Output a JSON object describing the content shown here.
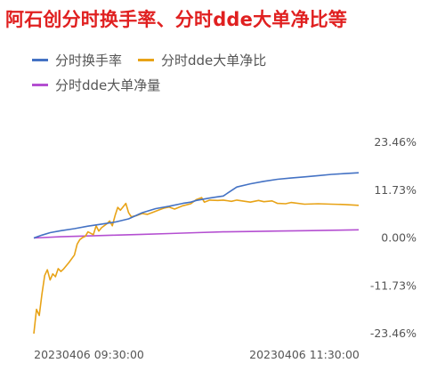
{
  "chart_data": {
    "type": "line",
    "title": "阿石创分时换手率、分时dde大单净比等",
    "y_ticks": [
      "23.46%",
      "11.73%",
      "0.00%",
      "-11.73%",
      "-23.46%"
    ],
    "y_tick_values": [
      23.46,
      11.73,
      0,
      -11.73,
      -23.46
    ],
    "ylim": [
      -23.46,
      23.46
    ],
    "x_ticks": [
      "20230406 09:30:00",
      "20230406 11:30:00"
    ],
    "x_range_minutes": [
      0,
      120
    ],
    "legend_position": "top-left",
    "grid": false,
    "series": [
      {
        "name": "分时换手率",
        "color": "#4472c4",
        "x": [
          0,
          3,
          6,
          10,
          15,
          20,
          25,
          30,
          35,
          40,
          45,
          50,
          55,
          58,
          60,
          65,
          68,
          70,
          72,
          75,
          80,
          85,
          90,
          95,
          100,
          105,
          110,
          115,
          120
        ],
        "y": [
          0,
          0.7,
          1.3,
          1.8,
          2.3,
          2.9,
          3.4,
          3.9,
          4.7,
          6.2,
          7.2,
          7.8,
          8.5,
          8.8,
          9.2,
          9.8,
          10.1,
          10.3,
          11.2,
          12.5,
          13.3,
          13.9,
          14.4,
          14.7,
          15.0,
          15.3,
          15.6,
          15.8,
          16.0
        ]
      },
      {
        "name": "分时dde大单净比",
        "color": "#e8a317",
        "x": [
          0,
          1,
          2,
          3,
          4,
          5,
          6,
          7,
          8,
          9,
          10,
          11,
          13,
          15,
          16,
          17,
          18,
          19,
          20,
          22,
          23,
          24,
          25,
          27,
          28,
          29,
          30,
          31,
          32,
          34,
          35,
          36,
          38,
          40,
          42,
          44,
          46,
          48,
          50,
          52,
          55,
          58,
          60,
          62,
          63,
          65,
          68,
          70,
          73,
          75,
          78,
          80,
          83,
          85,
          88,
          90,
          93,
          95,
          100,
          105,
          110,
          115,
          120
        ],
        "y": [
          -23.46,
          -17.5,
          -19.0,
          -13.8,
          -9.2,
          -7.8,
          -10.3,
          -8.8,
          -9.5,
          -7.5,
          -8.2,
          -7.6,
          -6.0,
          -4.2,
          -1.5,
          -0.4,
          0.1,
          0.4,
          1.5,
          0.8,
          3.0,
          1.7,
          2.5,
          3.5,
          4.2,
          3.0,
          5.5,
          7.5,
          6.8,
          8.5,
          6.2,
          5.2,
          5.5,
          6.0,
          5.8,
          6.3,
          6.8,
          7.3,
          7.6,
          7.1,
          7.9,
          8.4,
          9.4,
          9.9,
          8.8,
          9.3,
          9.2,
          9.3,
          9.0,
          9.3,
          9.0,
          8.8,
          9.2,
          8.9,
          9.1,
          8.5,
          8.4,
          8.7,
          8.3,
          8.4,
          8.3,
          8.2,
          8.0
        ]
      },
      {
        "name": "分时dde大单净量",
        "color": "#b44fd1",
        "x": [
          0,
          10,
          20,
          30,
          40,
          50,
          60,
          70,
          80,
          90,
          100,
          110,
          120
        ],
        "y": [
          0,
          0.3,
          0.5,
          0.7,
          0.9,
          1.1,
          1.3,
          1.5,
          1.6,
          1.7,
          1.8,
          1.9,
          2.0
        ]
      }
    ]
  }
}
